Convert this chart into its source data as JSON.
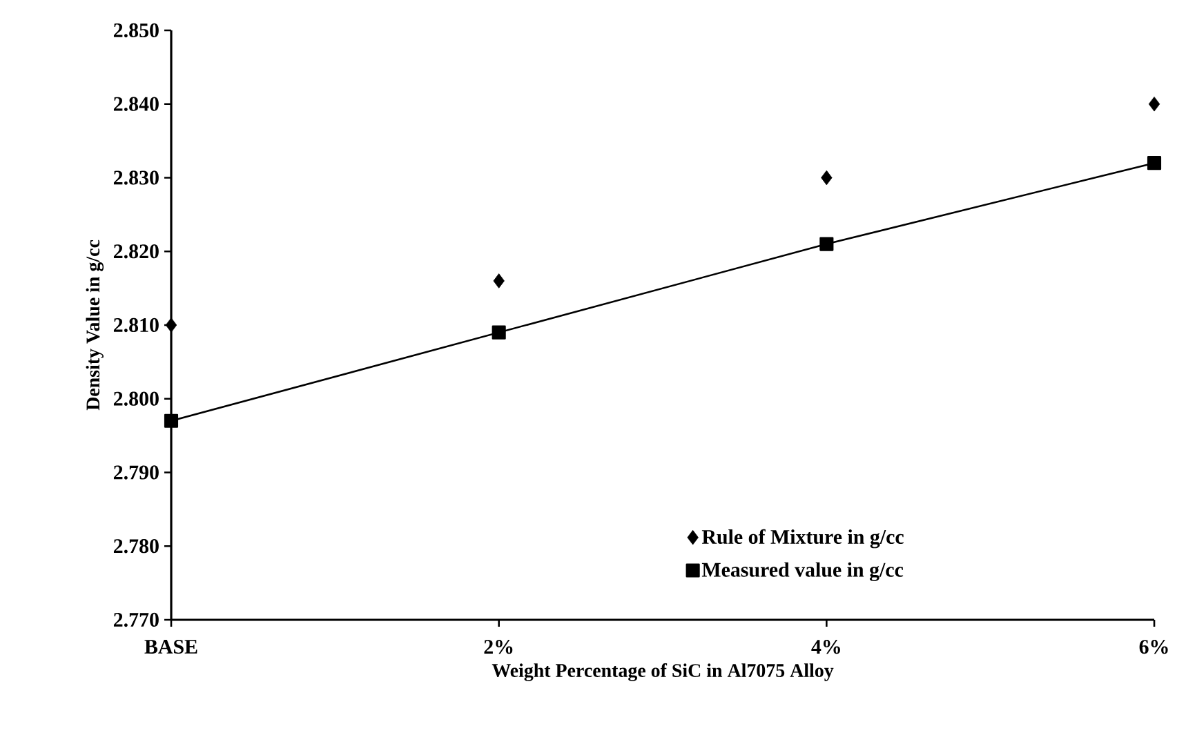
{
  "chart_data": {
    "type": "scatter",
    "xlabel": "Weight Percentage of SiC in Al7075 Alloy",
    "ylabel": "Density Value in g/cc",
    "categories": [
      "BASE",
      "2%",
      "4%",
      "6%"
    ],
    "series": [
      {
        "name": "Rule of Mixture  in g/cc",
        "marker": "diamond",
        "color": "#000000",
        "values": [
          2.81,
          2.816,
          2.83,
          2.84
        ]
      },
      {
        "name": "Measured value in g/cc",
        "type": "line",
        "marker": "square",
        "line_style": "solid",
        "color": "#000000",
        "values": [
          2.797,
          2.809,
          2.821,
          2.832
        ]
      }
    ],
    "ylim": [
      2.77,
      2.85
    ],
    "yticks": [
      {
        "value": 2.77,
        "label": "2.770"
      },
      {
        "value": 2.78,
        "label": "2.780"
      },
      {
        "value": 2.79,
        "label": "2.790"
      },
      {
        "value": 2.8,
        "label": "2.800"
      },
      {
        "value": 2.81,
        "label": "2.810"
      },
      {
        "value": 2.82,
        "label": "2.820"
      },
      {
        "value": 2.83,
        "label": "2.830"
      },
      {
        "value": 2.84,
        "label": "2.840"
      },
      {
        "value": 2.85,
        "label": "2.850"
      }
    ],
    "legend": "bottom right"
  }
}
